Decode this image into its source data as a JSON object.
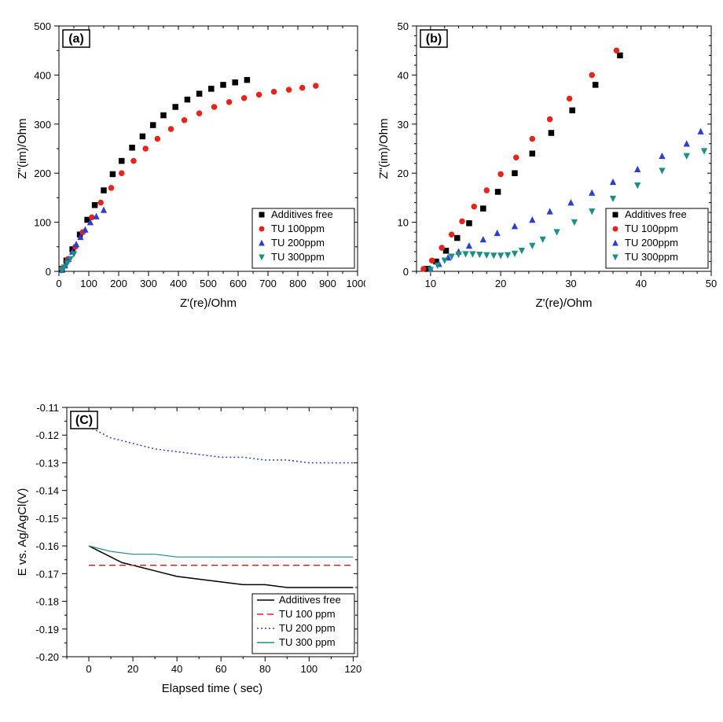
{
  "panelA": {
    "label": "(a)",
    "type": "scatter",
    "xlabel": "Z'(re)/Ohm",
    "ylabel": "Z\"(im)/Ohm",
    "xlim": [
      0,
      1000
    ],
    "ylim": [
      0,
      500
    ],
    "xtick_step": 100,
    "ytick_step": 100,
    "xminor_step": 50,
    "yminor_step": 50,
    "label_fontsize": 15,
    "tick_fontsize": 13,
    "background_color": "#ffffff",
    "legend": {
      "pos": "lower-right",
      "items": [
        {
          "label": "Additives free",
          "color": "#000000",
          "marker": "square"
        },
        {
          "label": "TU 100ppm",
          "color": "#e8231a",
          "marker": "circle"
        },
        {
          "label": "TU 200ppm",
          "color": "#2a3ed4",
          "marker": "triangle-up"
        },
        {
          "label": "TU 300ppm",
          "color": "#1d8f84",
          "marker": "triangle-down"
        }
      ]
    },
    "series": [
      {
        "name": "Additives free",
        "color": "#000000",
        "marker": "square",
        "size": 5,
        "x": [
          10,
          25,
          45,
          70,
          95,
          120,
          150,
          180,
          210,
          245,
          280,
          315,
          350,
          390,
          430,
          470,
          510,
          550,
          590,
          630
        ],
        "y": [
          5,
          22,
          45,
          75,
          105,
          135,
          165,
          198,
          225,
          252,
          275,
          298,
          318,
          335,
          350,
          362,
          372,
          380,
          385,
          390
        ]
      },
      {
        "name": "TU 100ppm",
        "color": "#e8231a",
        "marker": "circle",
        "size": 5,
        "x": [
          10,
          30,
          55,
          80,
          110,
          140,
          175,
          210,
          250,
          290,
          330,
          375,
          420,
          470,
          520,
          570,
          620,
          670,
          720,
          770,
          815,
          860
        ],
        "y": [
          5,
          25,
          50,
          80,
          110,
          140,
          170,
          200,
          225,
          250,
          270,
          290,
          308,
          322,
          335,
          345,
          353,
          360,
          366,
          370,
          374,
          378
        ]
      },
      {
        "name": "TU 200ppm",
        "color": "#2a3ed4",
        "marker": "triangle-up",
        "size": 5,
        "x": [
          10,
          20,
          32,
          45,
          58,
          72,
          88,
          105,
          125,
          150
        ],
        "y": [
          3,
          12,
          25,
          40,
          55,
          70,
          85,
          100,
          112,
          125
        ]
      },
      {
        "name": "TU 300ppm",
        "color": "#1d8f84",
        "marker": "triangle-down",
        "size": 5,
        "x": [
          10,
          18,
          28,
          38,
          50
        ],
        "y": [
          2,
          8,
          16,
          25,
          35
        ]
      }
    ]
  },
  "panelB": {
    "label": "(b)",
    "type": "scatter",
    "xlabel": "Z'(re)/Ohm",
    "ylabel": "Z\"(im)/Ohm",
    "xlim": [
      8,
      50
    ],
    "ylim": [
      0,
      50
    ],
    "xticks": [
      10,
      20,
      30,
      40,
      50
    ],
    "yticks": [
      0,
      10,
      20,
      30,
      40,
      50
    ],
    "xminor_step": 2,
    "yminor_step": 2,
    "label_fontsize": 15,
    "tick_fontsize": 13,
    "background_color": "#ffffff",
    "legend": {
      "pos": "lower-right",
      "items": [
        {
          "label": "Additives free",
          "color": "#000000",
          "marker": "square"
        },
        {
          "label": "TU 100ppm",
          "color": "#e8231a",
          "marker": "circle"
        },
        {
          "label": "TU 200ppm",
          "color": "#2a3ed4",
          "marker": "triangle-up"
        },
        {
          "label": "TU 300ppm",
          "color": "#1d8f84",
          "marker": "triangle-down"
        }
      ]
    },
    "series": [
      {
        "name": "Additives free",
        "color": "#000000",
        "marker": "square",
        "size": 5,
        "x": [
          9.5,
          10.8,
          12.2,
          13.8,
          15.5,
          17.5,
          19.6,
          22.0,
          24.5,
          27.2,
          30.2,
          33.5,
          37.0
        ],
        "y": [
          0.5,
          2.0,
          4.2,
          6.8,
          9.8,
          12.8,
          16.2,
          20.0,
          24.0,
          28.2,
          32.8,
          38.0,
          44.0
        ]
      },
      {
        "name": "TU 100ppm",
        "color": "#e8231a",
        "marker": "circle",
        "size": 5,
        "x": [
          9.0,
          10.2,
          11.6,
          13.0,
          14.5,
          16.2,
          18.0,
          20.0,
          22.2,
          24.5,
          27.0,
          29.8,
          33.0,
          36.5
        ],
        "y": [
          0.5,
          2.2,
          4.8,
          7.5,
          10.2,
          13.2,
          16.5,
          19.8,
          23.2,
          27.0,
          31.0,
          35.2,
          40.0,
          45.0
        ]
      },
      {
        "name": "TU 200ppm",
        "color": "#2a3ed4",
        "marker": "triangle-up",
        "size": 5,
        "x": [
          10.0,
          11.2,
          12.5,
          14.0,
          15.5,
          17.5,
          19.5,
          22.0,
          24.5,
          27.0,
          30.0,
          33.0,
          36.0,
          39.5,
          43.0,
          46.5,
          48.5
        ],
        "y": [
          0.5,
          1.5,
          2.8,
          4.0,
          5.2,
          6.5,
          7.8,
          9.2,
          10.5,
          12.2,
          14.0,
          16.0,
          18.2,
          20.8,
          23.5,
          26.0,
          28.5
        ]
      },
      {
        "name": "TU 300ppm",
        "color": "#1d8f84",
        "marker": "triangle-down",
        "size": 5,
        "x": [
          10.0,
          11.0,
          12.0,
          13.0,
          14.0,
          15.0,
          16.0,
          17.0,
          18.0,
          19.0,
          20.0,
          21.0,
          22.0,
          23.0,
          24.5,
          26.0,
          28.0,
          30.5,
          33.0,
          36.0,
          39.5,
          43.0,
          46.5,
          49.0
        ],
        "y": [
          0.3,
          1.2,
          2.2,
          3.0,
          3.4,
          3.5,
          3.5,
          3.4,
          3.3,
          3.2,
          3.2,
          3.3,
          3.6,
          4.2,
          5.2,
          6.5,
          8.0,
          10.0,
          12.2,
          14.8,
          17.5,
          20.5,
          23.5,
          24.5
        ]
      }
    ]
  },
  "panelC": {
    "label": "(C)",
    "type": "line",
    "xlabel": "Elapsed time ( sec)",
    "ylabel": "E vs. Ag/AgCl(V)",
    "xlim": [
      -10,
      122
    ],
    "ylim": [
      -0.2,
      -0.11
    ],
    "xticks": [
      0,
      20,
      40,
      60,
      80,
      100,
      120
    ],
    "yticks": [
      -0.2,
      -0.19,
      -0.18,
      -0.17,
      -0.16,
      -0.15,
      -0.14,
      -0.13,
      -0.12,
      -0.11
    ],
    "xminor_step": 10,
    "yminor_step": 0.005,
    "label_fontsize": 15,
    "tick_fontsize": 13,
    "background_color": "#ffffff",
    "legend": {
      "pos": "lower-right",
      "items": [
        {
          "label": "Additives free",
          "color": "#000000",
          "dash": "solid"
        },
        {
          "label": "TU 100 ppm",
          "color": "#e8231a",
          "dash": "dash"
        },
        {
          "label": "TU 200 ppm",
          "color": "#2a3ed4",
          "dash": "dot"
        },
        {
          "label": "TU 300 ppm",
          "color": "#1d8f84",
          "dash": "solid"
        }
      ]
    },
    "series": [
      {
        "name": "Additives free",
        "color": "#000000",
        "dash": "solid",
        "width": 1.5,
        "x": [
          0,
          5,
          10,
          15,
          20,
          30,
          40,
          50,
          60,
          70,
          80,
          90,
          100,
          110,
          120
        ],
        "y": [
          -0.16,
          -0.162,
          -0.164,
          -0.166,
          -0.167,
          -0.169,
          -0.171,
          -0.172,
          -0.173,
          -0.174,
          -0.174,
          -0.175,
          -0.175,
          -0.175,
          -0.175
        ]
      },
      {
        "name": "TU 100 ppm",
        "color": "#e8231a",
        "dash": "dash",
        "width": 1.5,
        "x": [
          0,
          10,
          20,
          30,
          40,
          50,
          60,
          70,
          80,
          90,
          100,
          110,
          120
        ],
        "y": [
          -0.167,
          -0.167,
          -0.167,
          -0.167,
          -0.167,
          -0.167,
          -0.167,
          -0.167,
          -0.167,
          -0.167,
          -0.167,
          -0.167,
          -0.167
        ]
      },
      {
        "name": "TU 200 ppm",
        "color": "#2a3ed4",
        "dash": "dot",
        "width": 1.5,
        "x": [
          0,
          5,
          10,
          20,
          30,
          40,
          50,
          60,
          70,
          80,
          90,
          100,
          110,
          120
        ],
        "y": [
          -0.117,
          -0.119,
          -0.121,
          -0.123,
          -0.125,
          -0.126,
          -0.127,
          -0.128,
          -0.128,
          -0.129,
          -0.129,
          -0.13,
          -0.13,
          -0.13
        ]
      },
      {
        "name": "TU 300 ppm",
        "color": "#1d8f84",
        "dash": "solid",
        "width": 1.2,
        "x": [
          0,
          5,
          10,
          20,
          30,
          40,
          50,
          60,
          70,
          80,
          90,
          100,
          110,
          120
        ],
        "y": [
          -0.16,
          -0.161,
          -0.162,
          -0.163,
          -0.163,
          -0.164,
          -0.164,
          -0.164,
          -0.164,
          -0.164,
          -0.164,
          -0.164,
          -0.164,
          -0.164
        ]
      }
    ]
  }
}
